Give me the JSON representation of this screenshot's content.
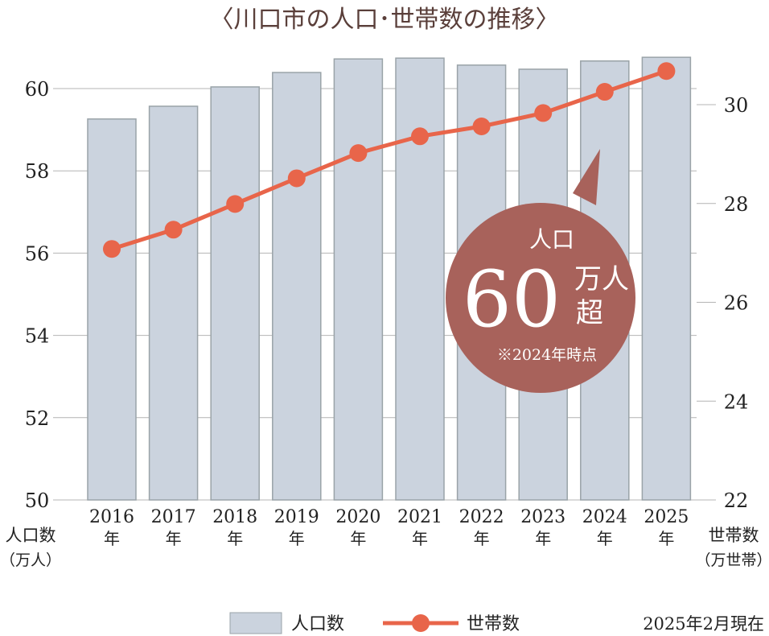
{
  "chart_data": {
    "type": "bar+line",
    "title": "〈川口市の人口･世帯数の推移〉",
    "categories": [
      "2016",
      "2017",
      "2018",
      "2019",
      "2020",
      "2021",
      "2022",
      "2023",
      "2024",
      "2025"
    ],
    "category_suffix": "年",
    "series": [
      {
        "name": "人口数",
        "type": "bar",
        "axis": "left",
        "values": [
          59.26,
          59.57,
          60.04,
          60.39,
          60.72,
          60.74,
          60.57,
          60.47,
          60.67,
          60.76
        ]
      },
      {
        "name": "世帯数",
        "type": "line",
        "axis": "right",
        "values": [
          27.08,
          27.47,
          27.99,
          28.51,
          29.02,
          29.36,
          29.56,
          29.83,
          30.26,
          30.68
        ]
      }
    ],
    "left_axis": {
      "label_line1": "人口数",
      "label_line2": "（万人）",
      "ylim": [
        50,
        60
      ],
      "ticks": [
        50,
        52,
        54,
        56,
        58,
        60
      ]
    },
    "right_axis": {
      "label_line1": "世帯数",
      "label_line2": "（万世帯）",
      "ylim": [
        22,
        30
      ],
      "ticks": [
        22,
        24,
        26,
        28,
        30
      ]
    },
    "grid": true,
    "legend_position": "bottom",
    "note": "2025年2月現在",
    "callout": {
      "line1": "人口",
      "big": "60",
      "unit1": "万人",
      "unit2": "超",
      "footnote": "※2024年時点"
    },
    "colors": {
      "bar_fill": "#cbd3de",
      "bar_stroke": "#9aa3a8",
      "line": "#e8654a",
      "callout": "#a8625b",
      "title": "#5a3f3a",
      "grid": "#b4b4b4"
    }
  }
}
